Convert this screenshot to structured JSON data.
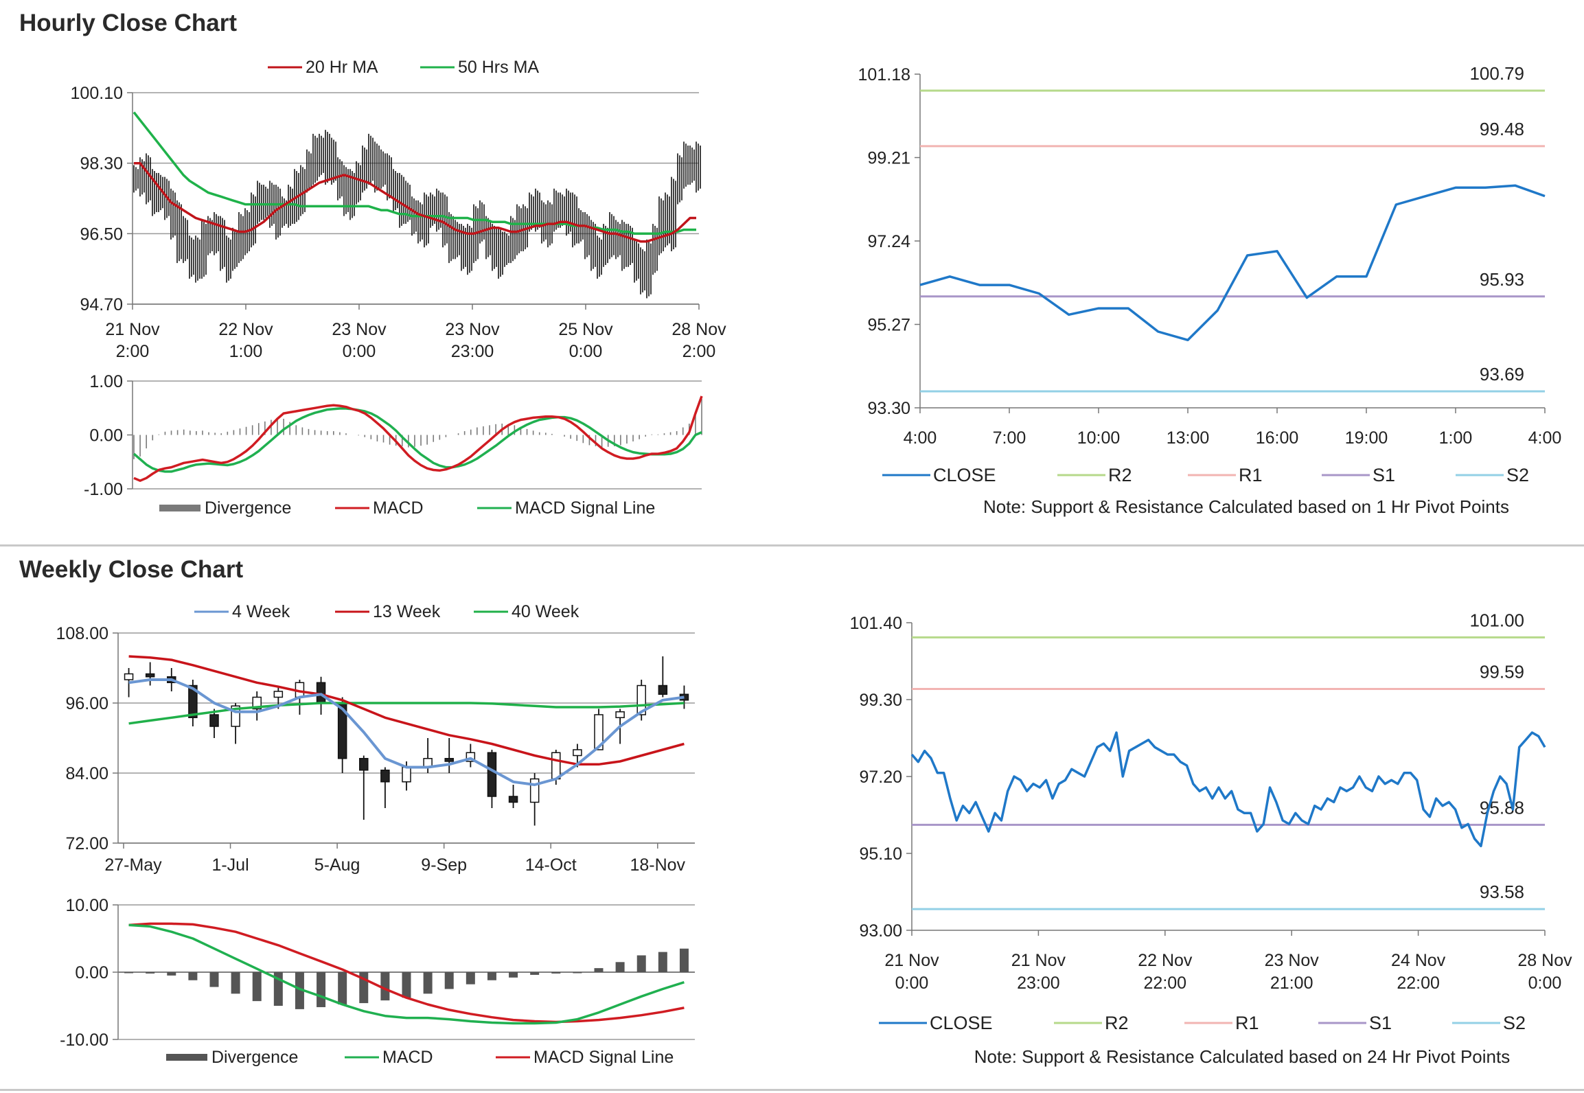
{
  "sections": [
    {
      "title": "Hourly Close Chart"
    },
    {
      "title": "Weekly Close Chart"
    }
  ],
  "colors": {
    "ma20": "#c0141a",
    "ma50": "#1fb24a",
    "macd_red": "#d01c22",
    "macd_green": "#20b050",
    "divergence": "#7a7a7a",
    "close": "#1f78c8",
    "r2": "#b6d98a",
    "r1": "#f2b4b2",
    "s1": "#a896c8",
    "s2": "#93d0e6",
    "candle": "#111111",
    "wk4": "#6a96d2",
    "wk13": "#c8141a",
    "wk40": "#20b04a",
    "grid": "#9a9a9a"
  },
  "chart_data": [
    {
      "id": "hourly_price",
      "type": "candlestick",
      "legend": [
        "20 Hr MA",
        "50 Hrs MA"
      ],
      "yticks": [
        "100.10",
        "98.30",
        "96.50",
        "94.70"
      ],
      "ylim": [
        94.7,
        100.1
      ],
      "xticks": [
        [
          "21 Nov",
          "2:00"
        ],
        [
          "22 Nov",
          "1:00"
        ],
        [
          "23 Nov",
          "0:00"
        ],
        [
          "23 Nov",
          "23:00"
        ],
        [
          "25 Nov",
          "0:00"
        ],
        [
          "28 Nov",
          "2:00"
        ]
      ],
      "close": [
        97.9,
        98.0,
        97.8,
        97.6,
        97.4,
        97.3,
        96.9,
        96.4,
        96.1,
        95.8,
        96.0,
        96.3,
        96.6,
        96.4,
        96.1,
        95.9,
        96.2,
        96.5,
        96.8,
        97.1,
        97.3,
        97.4,
        97.2,
        97.0,
        97.1,
        97.3,
        97.6,
        97.9,
        98.2,
        98.5,
        98.7,
        98.4,
        98.1,
        97.8,
        97.5,
        97.6,
        98.0,
        98.3,
        98.5,
        98.2,
        98.0,
        97.8,
        97.6,
        97.3,
        97.1,
        96.9,
        96.8,
        97.0,
        97.2,
        97.0,
        96.7,
        96.4,
        96.2,
        96.0,
        96.4,
        96.8,
        96.6,
        96.3,
        96.1,
        96.0,
        96.2,
        96.5,
        96.7,
        96.9,
        97.1,
        97.0,
        96.8,
        96.9,
        97.1,
        97.2,
        97.0,
        96.8,
        96.6,
        96.3,
        96.1,
        96.0,
        96.3,
        96.5,
        96.4,
        96.2,
        96.0,
        95.7,
        95.5,
        95.8,
        96.4,
        97.0,
        96.7,
        97.6,
        98.1,
        98.3,
        98.4,
        98.2
      ],
      "ma20": [
        98.3,
        98.3,
        98.1,
        97.9,
        97.7,
        97.5,
        97.3,
        97.2,
        97.1,
        97.0,
        96.9,
        96.85,
        96.8,
        96.75,
        96.7,
        96.65,
        96.6,
        96.55,
        96.55,
        96.6,
        96.7,
        96.8,
        96.95,
        97.1,
        97.2,
        97.3,
        97.4,
        97.5,
        97.6,
        97.7,
        97.8,
        97.85,
        97.9,
        97.95,
        98.0,
        97.95,
        97.9,
        97.85,
        97.8,
        97.7,
        97.6,
        97.5,
        97.4,
        97.3,
        97.2,
        97.1,
        97.0,
        96.95,
        96.9,
        96.85,
        96.8,
        96.7,
        96.6,
        96.55,
        96.5,
        96.5,
        96.55,
        96.6,
        96.65,
        96.65,
        96.6,
        96.55,
        96.55,
        96.6,
        96.65,
        96.7,
        96.7,
        96.75,
        96.75,
        96.8,
        96.8,
        96.75,
        96.7,
        96.7,
        96.65,
        96.6,
        96.55,
        96.5,
        96.5,
        96.45,
        96.4,
        96.35,
        96.3,
        96.3,
        96.35,
        96.4,
        96.45,
        96.5,
        96.6,
        96.75,
        96.9,
        96.9
      ],
      "ma50": [
        99.6,
        99.4,
        99.2,
        99.0,
        98.8,
        98.6,
        98.4,
        98.2,
        98.0,
        97.85,
        97.75,
        97.65,
        97.55,
        97.5,
        97.45,
        97.4,
        97.35,
        97.3,
        97.25,
        97.25,
        97.25,
        97.25,
        97.25,
        97.25,
        97.25,
        97.25,
        97.25,
        97.2,
        97.2,
        97.2,
        97.2,
        97.2,
        97.2,
        97.2,
        97.2,
        97.2,
        97.2,
        97.2,
        97.2,
        97.15,
        97.1,
        97.1,
        97.05,
        97.0,
        97.0,
        96.95,
        96.95,
        96.95,
        96.95,
        96.95,
        96.95,
        96.9,
        96.9,
        96.9,
        96.9,
        96.85,
        96.85,
        96.85,
        96.8,
        96.8,
        96.8,
        96.75,
        96.75,
        96.75,
        96.75,
        96.75,
        96.75,
        96.75,
        96.75,
        96.75,
        96.75,
        96.7,
        96.7,
        96.7,
        96.65,
        96.65,
        96.6,
        96.6,
        96.6,
        96.55,
        96.55,
        96.5,
        96.5,
        96.5,
        96.5,
        96.5,
        96.55,
        96.55,
        96.55,
        96.6,
        96.6,
        96.6
      ]
    },
    {
      "id": "hourly_macd",
      "type": "line+bar",
      "legend": [
        "Divergence",
        "MACD",
        "MACD Signal Line"
      ],
      "yticks": [
        "1.00",
        "0.00",
        "-1.00"
      ],
      "ylim": [
        -1.0,
        1.0
      ],
      "macd": [
        -0.8,
        -0.85,
        -0.8,
        -0.72,
        -0.65,
        -0.62,
        -0.6,
        -0.56,
        -0.52,
        -0.5,
        -0.48,
        -0.46,
        -0.48,
        -0.5,
        -0.52,
        -0.5,
        -0.45,
        -0.38,
        -0.3,
        -0.2,
        -0.08,
        0.05,
        0.18,
        0.3,
        0.4,
        0.42,
        0.44,
        0.46,
        0.48,
        0.5,
        0.52,
        0.54,
        0.55,
        0.54,
        0.52,
        0.48,
        0.45,
        0.4,
        0.32,
        0.22,
        0.12,
        0.0,
        -0.12,
        -0.25,
        -0.38,
        -0.48,
        -0.56,
        -0.62,
        -0.65,
        -0.66,
        -0.64,
        -0.6,
        -0.55,
        -0.48,
        -0.4,
        -0.3,
        -0.2,
        -0.1,
        0.0,
        0.1,
        0.18,
        0.24,
        0.28,
        0.3,
        0.32,
        0.33,
        0.34,
        0.34,
        0.33,
        0.3,
        0.24,
        0.16,
        0.06,
        -0.05,
        -0.15,
        -0.25,
        -0.32,
        -0.38,
        -0.42,
        -0.44,
        -0.44,
        -0.42,
        -0.38,
        -0.35,
        -0.35,
        -0.33,
        -0.3,
        -0.25,
        -0.12,
        0.05,
        0.4,
        0.72
      ],
      "signal": [
        -0.35,
        -0.45,
        -0.55,
        -0.62,
        -0.66,
        -0.68,
        -0.68,
        -0.65,
        -0.62,
        -0.58,
        -0.55,
        -0.54,
        -0.53,
        -0.54,
        -0.55,
        -0.56,
        -0.54,
        -0.5,
        -0.45,
        -0.38,
        -0.3,
        -0.2,
        -0.1,
        0.0,
        0.1,
        0.18,
        0.26,
        0.32,
        0.37,
        0.41,
        0.44,
        0.47,
        0.48,
        0.49,
        0.49,
        0.48,
        0.46,
        0.44,
        0.4,
        0.34,
        0.26,
        0.18,
        0.08,
        -0.04,
        -0.15,
        -0.26,
        -0.36,
        -0.44,
        -0.52,
        -0.57,
        -0.6,
        -0.6,
        -0.58,
        -0.55,
        -0.5,
        -0.44,
        -0.36,
        -0.28,
        -0.2,
        -0.11,
        -0.02,
        0.06,
        0.13,
        0.19,
        0.24,
        0.28,
        0.3,
        0.32,
        0.33,
        0.33,
        0.31,
        0.27,
        0.21,
        0.14,
        0.06,
        -0.02,
        -0.1,
        -0.17,
        -0.23,
        -0.28,
        -0.32,
        -0.34,
        -0.35,
        -0.36,
        -0.36,
        -0.36,
        -0.35,
        -0.32,
        -0.26,
        -0.16,
        0.0,
        0.05
      ]
    },
    {
      "id": "hourly_close_pivots",
      "type": "line",
      "legend": [
        "CLOSE",
        "R2",
        "R1",
        "S1",
        "S2"
      ],
      "note": "Note: Support & Resistance Calculated based on 1 Hr Pivot Points",
      "yticks": [
        "101.18",
        "99.21",
        "97.24",
        "95.27",
        "93.30"
      ],
      "ylim": [
        93.3,
        101.18
      ],
      "xticks": [
        "4:00",
        "7:00",
        "10:00",
        "13:00",
        "16:00",
        "19:00",
        "1:00",
        "4:00"
      ],
      "close": [
        96.2,
        96.4,
        96.2,
        96.2,
        96.0,
        95.5,
        95.65,
        95.65,
        95.1,
        94.9,
        95.6,
        96.9,
        97.0,
        95.9,
        96.4,
        96.4,
        98.1,
        98.3,
        98.5,
        98.5,
        98.55,
        98.3
      ],
      "levels": {
        "R2": "100.79",
        "R1": "99.48",
        "S1": "95.93",
        "S2": "93.69"
      },
      "level_values": {
        "R2": 100.79,
        "R1": 99.48,
        "S1": 95.93,
        "S2": 93.69
      }
    },
    {
      "id": "weekly_price",
      "type": "candlestick",
      "legend": [
        "4 Week",
        "13 Week",
        "40 Week"
      ],
      "yticks": [
        "108.00",
        "96.00",
        "84.00",
        "72.00"
      ],
      "ylim": [
        72,
        108
      ],
      "xticks": [
        "27-May",
        "1-Jul",
        "5-Aug",
        "9-Sep",
        "14-Oct",
        "18-Nov"
      ],
      "candles": [
        {
          "o": 100.0,
          "c": 101.0,
          "h": 102,
          "l": 97
        },
        {
          "o": 101.0,
          "c": 100.5,
          "h": 103,
          "l": 99
        },
        {
          "o": 100.5,
          "c": 99.5,
          "h": 102,
          "l": 98
        },
        {
          "o": 99.0,
          "c": 93.5,
          "h": 100,
          "l": 92
        },
        {
          "o": 94.0,
          "c": 92.0,
          "h": 95,
          "l": 90
        },
        {
          "o": 92.0,
          "c": 95.5,
          "h": 96,
          "l": 89
        },
        {
          "o": 95.0,
          "c": 97.0,
          "h": 98,
          "l": 93
        },
        {
          "o": 97.0,
          "c": 98.0,
          "h": 99,
          "l": 95
        },
        {
          "o": 97.0,
          "c": 99.5,
          "h": 100,
          "l": 94
        },
        {
          "o": 99.5,
          "c": 96.0,
          "h": 100.5,
          "l": 94
        },
        {
          "o": 96.0,
          "c": 86.5,
          "h": 97,
          "l": 84
        },
        {
          "o": 86.5,
          "c": 84.5,
          "h": 87,
          "l": 76
        },
        {
          "o": 84.5,
          "c": 82.5,
          "h": 85,
          "l": 78
        },
        {
          "o": 82.5,
          "c": 85.0,
          "h": 86,
          "l": 81
        },
        {
          "o": 85.0,
          "c": 86.5,
          "h": 90,
          "l": 84
        },
        {
          "o": 86.5,
          "c": 86.0,
          "h": 90,
          "l": 84
        },
        {
          "o": 86.0,
          "c": 87.5,
          "h": 89,
          "l": 85
        },
        {
          "o": 87.5,
          "c": 80.0,
          "h": 88,
          "l": 78
        },
        {
          "o": 80.0,
          "c": 79.0,
          "h": 82,
          "l": 78
        },
        {
          "o": 79.0,
          "c": 83.0,
          "h": 84,
          "l": 75
        },
        {
          "o": 83.0,
          "c": 87.5,
          "h": 88,
          "l": 82
        },
        {
          "o": 87.0,
          "c": 88.0,
          "h": 89,
          "l": 85
        },
        {
          "o": 88.0,
          "c": 94.0,
          "h": 95,
          "l": 88
        },
        {
          "o": 93.5,
          "c": 94.5,
          "h": 95,
          "l": 89
        },
        {
          "o": 94.0,
          "c": 99.0,
          "h": 100,
          "l": 93
        },
        {
          "o": 99.0,
          "c": 97.5,
          "h": 104,
          "l": 97
        },
        {
          "o": 97.5,
          "c": 96.5,
          "h": 99,
          "l": 95
        }
      ],
      "wk4": [
        99.5,
        100.0,
        100.0,
        98.5,
        96.0,
        94.5,
        94.5,
        95.5,
        97.0,
        97.5,
        95.0,
        91.0,
        86.5,
        85.0,
        85.0,
        85.5,
        86.5,
        84.5,
        82.5,
        82.0,
        83.0,
        85.5,
        88.5,
        92.0,
        94.5,
        96.5,
        97.0
      ],
      "wk13": [
        104.0,
        103.8,
        103.4,
        102.5,
        101.5,
        100.5,
        99.5,
        98.8,
        98.0,
        97.5,
        96.5,
        95.0,
        93.5,
        92.5,
        91.5,
        90.5,
        89.8,
        89.0,
        88.0,
        87.0,
        86.2,
        85.5,
        85.5,
        86.0,
        87.0,
        88.0,
        89.0
      ],
      "wk40": [
        92.5,
        93.0,
        93.5,
        94.0,
        94.5,
        95.0,
        95.3,
        95.6,
        95.8,
        96.0,
        96.0,
        96.0,
        96.0,
        96.0,
        96.0,
        96.0,
        96.0,
        95.9,
        95.7,
        95.5,
        95.3,
        95.3,
        95.3,
        95.4,
        95.6,
        95.8,
        96.0
      ]
    },
    {
      "id": "weekly_macd",
      "type": "line+bar",
      "legend": [
        "Divergence",
        "MACD",
        "MACD Signal Line"
      ],
      "yticks": [
        "10.00",
        "0.00",
        "-10.00"
      ],
      "ylim": [
        -10,
        10
      ],
      "divergence": [
        0,
        -0.2,
        -0.5,
        -1.2,
        -2.2,
        -3.2,
        -4.3,
        -5.0,
        -5.5,
        -5.2,
        -4.8,
        -4.6,
        -4.2,
        -3.8,
        -3.2,
        -2.5,
        -1.8,
        -1.2,
        -0.8,
        -0.4,
        -0.2,
        -0.1,
        0.6,
        1.5,
        2.5,
        3.0,
        3.5
      ],
      "macd": [
        7.0,
        6.8,
        6.0,
        5.0,
        3.5,
        2.0,
        0.5,
        -1.0,
        -2.5,
        -3.6,
        -4.8,
        -5.8,
        -6.5,
        -6.8,
        -6.8,
        -7.0,
        -7.3,
        -7.5,
        -7.6,
        -7.6,
        -7.5,
        -7.0,
        -6.0,
        -4.8,
        -3.6,
        -2.5,
        -1.5
      ],
      "signal": [
        7.0,
        7.2,
        7.2,
        7.1,
        6.6,
        6.0,
        5.0,
        4.0,
        2.8,
        1.6,
        0.4,
        -1.0,
        -2.5,
        -3.8,
        -4.8,
        -5.6,
        -6.2,
        -6.7,
        -7.1,
        -7.3,
        -7.4,
        -7.3,
        -7.1,
        -6.8,
        -6.4,
        -5.9,
        -5.3
      ]
    },
    {
      "id": "weekly_close_pivots",
      "type": "line",
      "legend": [
        "CLOSE",
        "R2",
        "R1",
        "S1",
        "S2"
      ],
      "note": "Note:  Support & Resistance Calculated based on 24 Hr Pivot Points",
      "yticks": [
        "101.40",
        "99.30",
        "97.20",
        "95.10",
        "93.00"
      ],
      "ylim": [
        93.0,
        101.4
      ],
      "xticks": [
        [
          "21 Nov",
          "0:00"
        ],
        [
          "21 Nov",
          "23:00"
        ],
        [
          "22 Nov",
          "22:00"
        ],
        [
          "23 Nov",
          "21:00"
        ],
        [
          "24 Nov",
          "22:00"
        ],
        [
          "28 Nov",
          "0:00"
        ]
      ],
      "close": [
        97.8,
        97.6,
        97.9,
        97.7,
        97.3,
        97.3,
        96.6,
        96.0,
        96.4,
        96.2,
        96.5,
        96.1,
        95.7,
        96.2,
        96.0,
        96.8,
        97.2,
        97.1,
        96.8,
        97.0,
        96.9,
        97.1,
        96.6,
        97.0,
        97.1,
        97.4,
        97.3,
        97.2,
        97.6,
        98.0,
        98.1,
        97.9,
        98.4,
        97.2,
        97.9,
        98.0,
        98.1,
        98.2,
        98.0,
        97.9,
        97.8,
        97.8,
        97.6,
        97.5,
        97.0,
        96.8,
        96.9,
        96.6,
        96.9,
        96.6,
        96.8,
        96.3,
        96.2,
        96.2,
        95.7,
        95.9,
        96.9,
        96.5,
        96.0,
        95.9,
        96.2,
        96.0,
        95.9,
        96.4,
        96.3,
        96.6,
        96.5,
        96.9,
        96.8,
        96.9,
        97.2,
        96.9,
        96.8,
        97.2,
        97.0,
        97.1,
        97.0,
        97.3,
        97.3,
        97.1,
        96.3,
        96.1,
        96.6,
        96.4,
        96.5,
        96.3,
        95.8,
        95.9,
        95.5,
        95.3,
        96.2,
        96.8,
        97.2,
        97.0,
        96.3,
        98.0,
        98.2,
        98.4,
        98.3,
        98.0
      ],
      "levels": {
        "R2": "101.00",
        "R1": "99.59",
        "S1": "95.88",
        "S2": "93.58"
      },
      "level_values": {
        "R2": 101.0,
        "R1": 99.59,
        "S1": 95.88,
        "S2": 93.58
      }
    }
  ]
}
